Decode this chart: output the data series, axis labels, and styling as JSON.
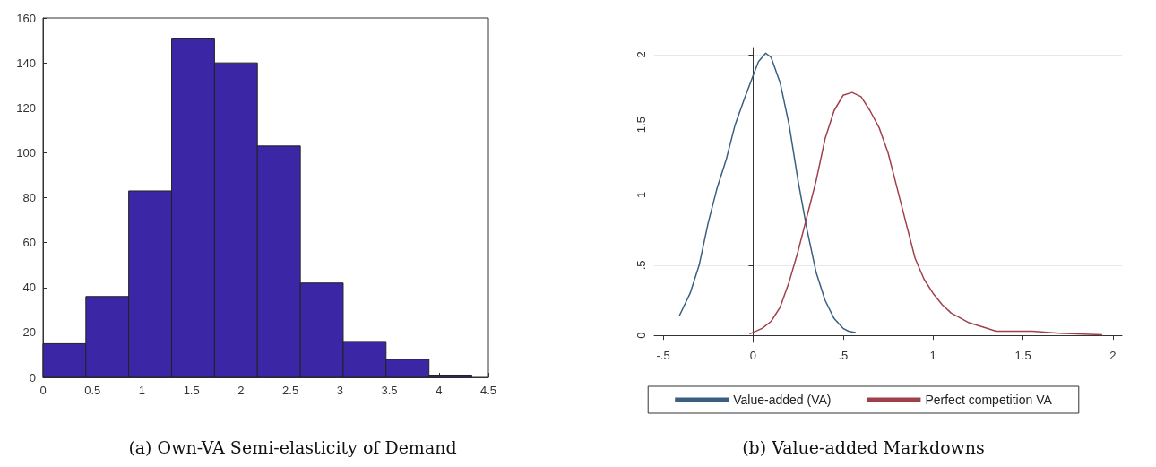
{
  "chart_data": [
    {
      "type": "histogram",
      "title": "(a) Own-VA Semi-elasticity of Demand",
      "bins": [
        0,
        0.433,
        0.866,
        1.3,
        1.733,
        2.166,
        2.6,
        3.033,
        3.466,
        3.9,
        4.333
      ],
      "values": [
        15,
        36,
        83,
        151,
        140,
        103,
        42,
        16,
        8,
        1
      ],
      "color": "#3b27a6",
      "xlim": [
        0,
        4.5
      ],
      "xticks": [
        0,
        0.5,
        1,
        1.5,
        2,
        2.5,
        3,
        3.5,
        4,
        4.5
      ],
      "ylim": [
        0,
        160
      ],
      "yticks": [
        0,
        20,
        40,
        60,
        80,
        100,
        120,
        140,
        160
      ],
      "grid": false,
      "legend": false
    },
    {
      "type": "line",
      "title": "(b) Value-added Markdowns",
      "legend": "bottom",
      "grid": "y",
      "xlim": [
        -0.55,
        2.05
      ],
      "xticks": [
        {
          "value": -0.5,
          "label": "-.5"
        },
        0,
        {
          "value": 0.5,
          "label": ".5"
        },
        1,
        1.5,
        2
      ],
      "ylim": [
        -0.05,
        2.05
      ],
      "yticks": [
        0,
        {
          "value": 0.5,
          "label": ".5"
        },
        1,
        1.5,
        2
      ],
      "series": [
        {
          "name": "Value-added (VA)",
          "color": "#3a5f80",
          "x": [
            -0.41,
            -0.35,
            -0.3,
            -0.25,
            -0.2,
            -0.15,
            -0.1,
            -0.05,
            0,
            0.03,
            0.07,
            0.1,
            0.15,
            0.2,
            0.25,
            0.3,
            0.35,
            0.4,
            0.45,
            0.5,
            0.53,
            0.57
          ],
          "values": [
            0.14,
            0.3,
            0.5,
            0.8,
            1.05,
            1.25,
            1.5,
            1.68,
            1.85,
            1.95,
            2.01,
            1.98,
            1.8,
            1.5,
            1.1,
            0.75,
            0.45,
            0.25,
            0.12,
            0.05,
            0.03,
            0.02
          ]
        },
        {
          "name": "Perfect competition VA",
          "color": "#a0404a",
          "x": [
            -0.02,
            0.05,
            0.1,
            0.15,
            0.2,
            0.25,
            0.3,
            0.35,
            0.4,
            0.45,
            0.5,
            0.55,
            0.6,
            0.65,
            0.7,
            0.75,
            0.8,
            0.85,
            0.9,
            0.95,
            1,
            1.05,
            1.1,
            1.2,
            1.3,
            1.35,
            1.45,
            1.55,
            1.7,
            1.8,
            1.94
          ],
          "values": [
            0.01,
            0.05,
            0.1,
            0.2,
            0.38,
            0.6,
            0.85,
            1.1,
            1.4,
            1.6,
            1.71,
            1.73,
            1.7,
            1.6,
            1.48,
            1.3,
            1.05,
            0.8,
            0.55,
            0.4,
            0.3,
            0.22,
            0.16,
            0.09,
            0.05,
            0.03,
            0.03,
            0.03,
            0.015,
            0.01,
            0.005
          ]
        }
      ]
    }
  ]
}
